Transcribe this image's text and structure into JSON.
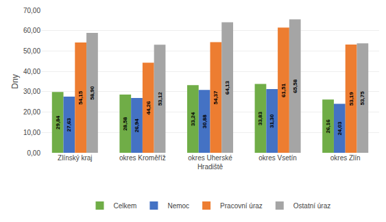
{
  "chart_data": {
    "type": "bar",
    "ylabel": "Dny",
    "categories": [
      "Zlínský kraj",
      "okres Kroměříž",
      "okres Uherské\nHradiště",
      "okres Vsetín",
      "okres Zlín"
    ],
    "series": [
      {
        "name": "Celkem",
        "color": "#70AD47",
        "values": [
          29.84,
          28.58,
          33.24,
          33.83,
          26.16
        ],
        "value_labels": [
          "29,84",
          "28,58",
          "33,24",
          "33,83",
          "26,16"
        ]
      },
      {
        "name": "Nemoc",
        "color": "#4472C4",
        "values": [
          27.63,
          26.94,
          30.88,
          31.3,
          24.03
        ],
        "value_labels": [
          "27,63",
          "26,94",
          "30,88",
          "31,30",
          "24,03"
        ]
      },
      {
        "name": "Pracovní úraz",
        "color": "#ED7D31",
        "values": [
          54.15,
          44.26,
          54.37,
          61.51,
          53.19
        ],
        "value_labels": [
          "54,15",
          "44,26",
          "54,37",
          "61,51",
          "53,19"
        ]
      },
      {
        "name": "Ostatní úraz",
        "color": "#A5A5A5",
        "values": [
          58.9,
          53.12,
          64.13,
          65.58,
          53.75
        ],
        "value_labels": [
          "58,90",
          "53,12",
          "64,13",
          "65,58",
          "53,75"
        ]
      }
    ],
    "ylim": [
      0,
      70
    ],
    "yticks": [
      {
        "value": 0,
        "label": "0,00"
      },
      {
        "value": 10,
        "label": "10,00"
      },
      {
        "value": 20,
        "label": "20,00"
      },
      {
        "value": 30,
        "label": "30,00"
      },
      {
        "value": 40,
        "label": "40,00"
      },
      {
        "value": 50,
        "label": "50,00"
      },
      {
        "value": 60,
        "label": "60,00"
      },
      {
        "value": 70,
        "label": "70,00"
      }
    ],
    "grid": true,
    "legend": "bottom",
    "data_labels": true
  }
}
